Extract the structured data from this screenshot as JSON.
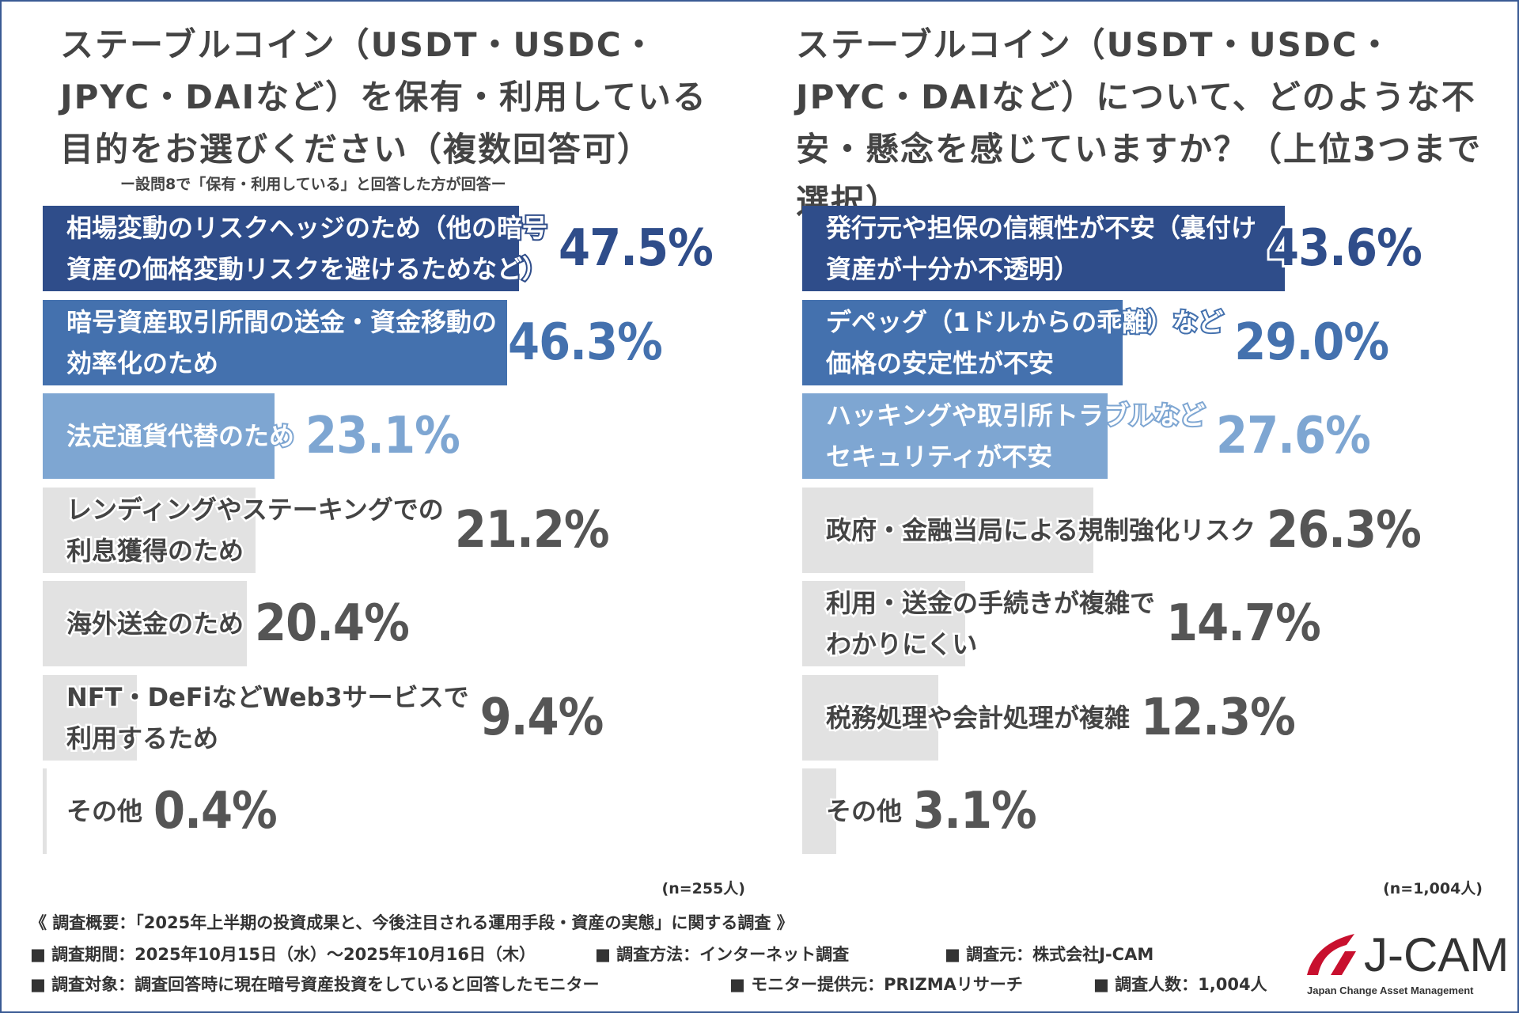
{
  "chart_data": [
    {
      "type": "bar",
      "orientation": "horizontal",
      "title": "ステーブルコイン（USDT・USDC・JPYC・DAIなど）を保有・利用している目的をお選びください（複数回答可）",
      "subtitle": "ー設問8で「保有・利用している」と回答した方が回答ー",
      "note": "(n=255人)",
      "categories": [
        [
          "相場変動のリスクヘッジのため（他の暗号",
          "資産の価格変動リスクを避けるためなど）"
        ],
        [
          "暗号資産取引所間の送金・資金移動の",
          "効率化のため"
        ],
        [
          "法定通貨代替のため"
        ],
        [
          "レンディングやステーキングでの",
          "利息獲得のため"
        ],
        [
          "海外送金のため"
        ],
        [
          "NFT・DeFiなどWeb3サービスで",
          "利用するため"
        ],
        [
          "その他"
        ]
      ],
      "values": [
        47.5,
        46.3,
        23.1,
        21.2,
        20.4,
        9.4,
        0.4
      ],
      "value_labels": [
        "47.5%",
        "46.3%",
        "23.1%",
        "21.2%",
        "20.4%",
        "9.4%",
        "0.4%"
      ],
      "colors": [
        "#2f4d8a",
        "#4471ae",
        "#7ea6d2",
        "#e2e2e2",
        "#e2e2e2",
        "#e2e2e2",
        "#e2e2e2"
      ]
    },
    {
      "type": "bar",
      "orientation": "horizontal",
      "title": "ステーブルコイン（USDT・USDC・JPYC・DAIなど）について、どのような不安・懸念を感じていますか？（上位3つまで選択）",
      "note": "(n=1,004人)",
      "categories": [
        [
          "発行元や担保の信頼性が不安（裏付け",
          "資産が十分か不透明）"
        ],
        [
          "デペッグ（1ドルからの乖離）など",
          "価格の安定性が不安"
        ],
        [
          "ハッキングや取引所トラブルなど",
          "セキュリティが不安"
        ],
        [
          "政府・金融当局による規制強化リスク"
        ],
        [
          "利用・送金の手続きが複雑で",
          "わかりにくい"
        ],
        [
          "税務処理や会計処理が複雑"
        ],
        [
          "その他"
        ]
      ],
      "values": [
        43.6,
        29.0,
        27.6,
        26.3,
        14.7,
        12.3,
        3.1
      ],
      "value_labels": [
        "43.6%",
        "29.0%",
        "27.6%",
        "26.3%",
        "14.7%",
        "12.3%",
        "3.1%"
      ],
      "colors": [
        "#2f4d8a",
        "#4471ae",
        "#7ea6d2",
        "#e2e2e2",
        "#e2e2e2",
        "#e2e2e2",
        "#e2e2e2"
      ]
    }
  ],
  "footer": {
    "overview": "《 調査概要：「2025年上半期の投資成果と、今後注目される運用手段・資産の実態」に関する調査 》",
    "period": "■ 調査期間：2025年10月15日（水）～2025年10月16日（木）",
    "method": "■ 調査方法：インターネット調査",
    "source": "■ 調査元：株式会社J-CAM",
    "target": "■ 調査対象：調査回答時に現在暗号資産投資をしていると回答したモニター",
    "provider": "■ モニター提供元：PRIZMAリサーチ",
    "count": "■ 調査人数：1,004人"
  },
  "logo": {
    "name": "J-CAM",
    "tagline": "Japan Change Asset Management"
  }
}
